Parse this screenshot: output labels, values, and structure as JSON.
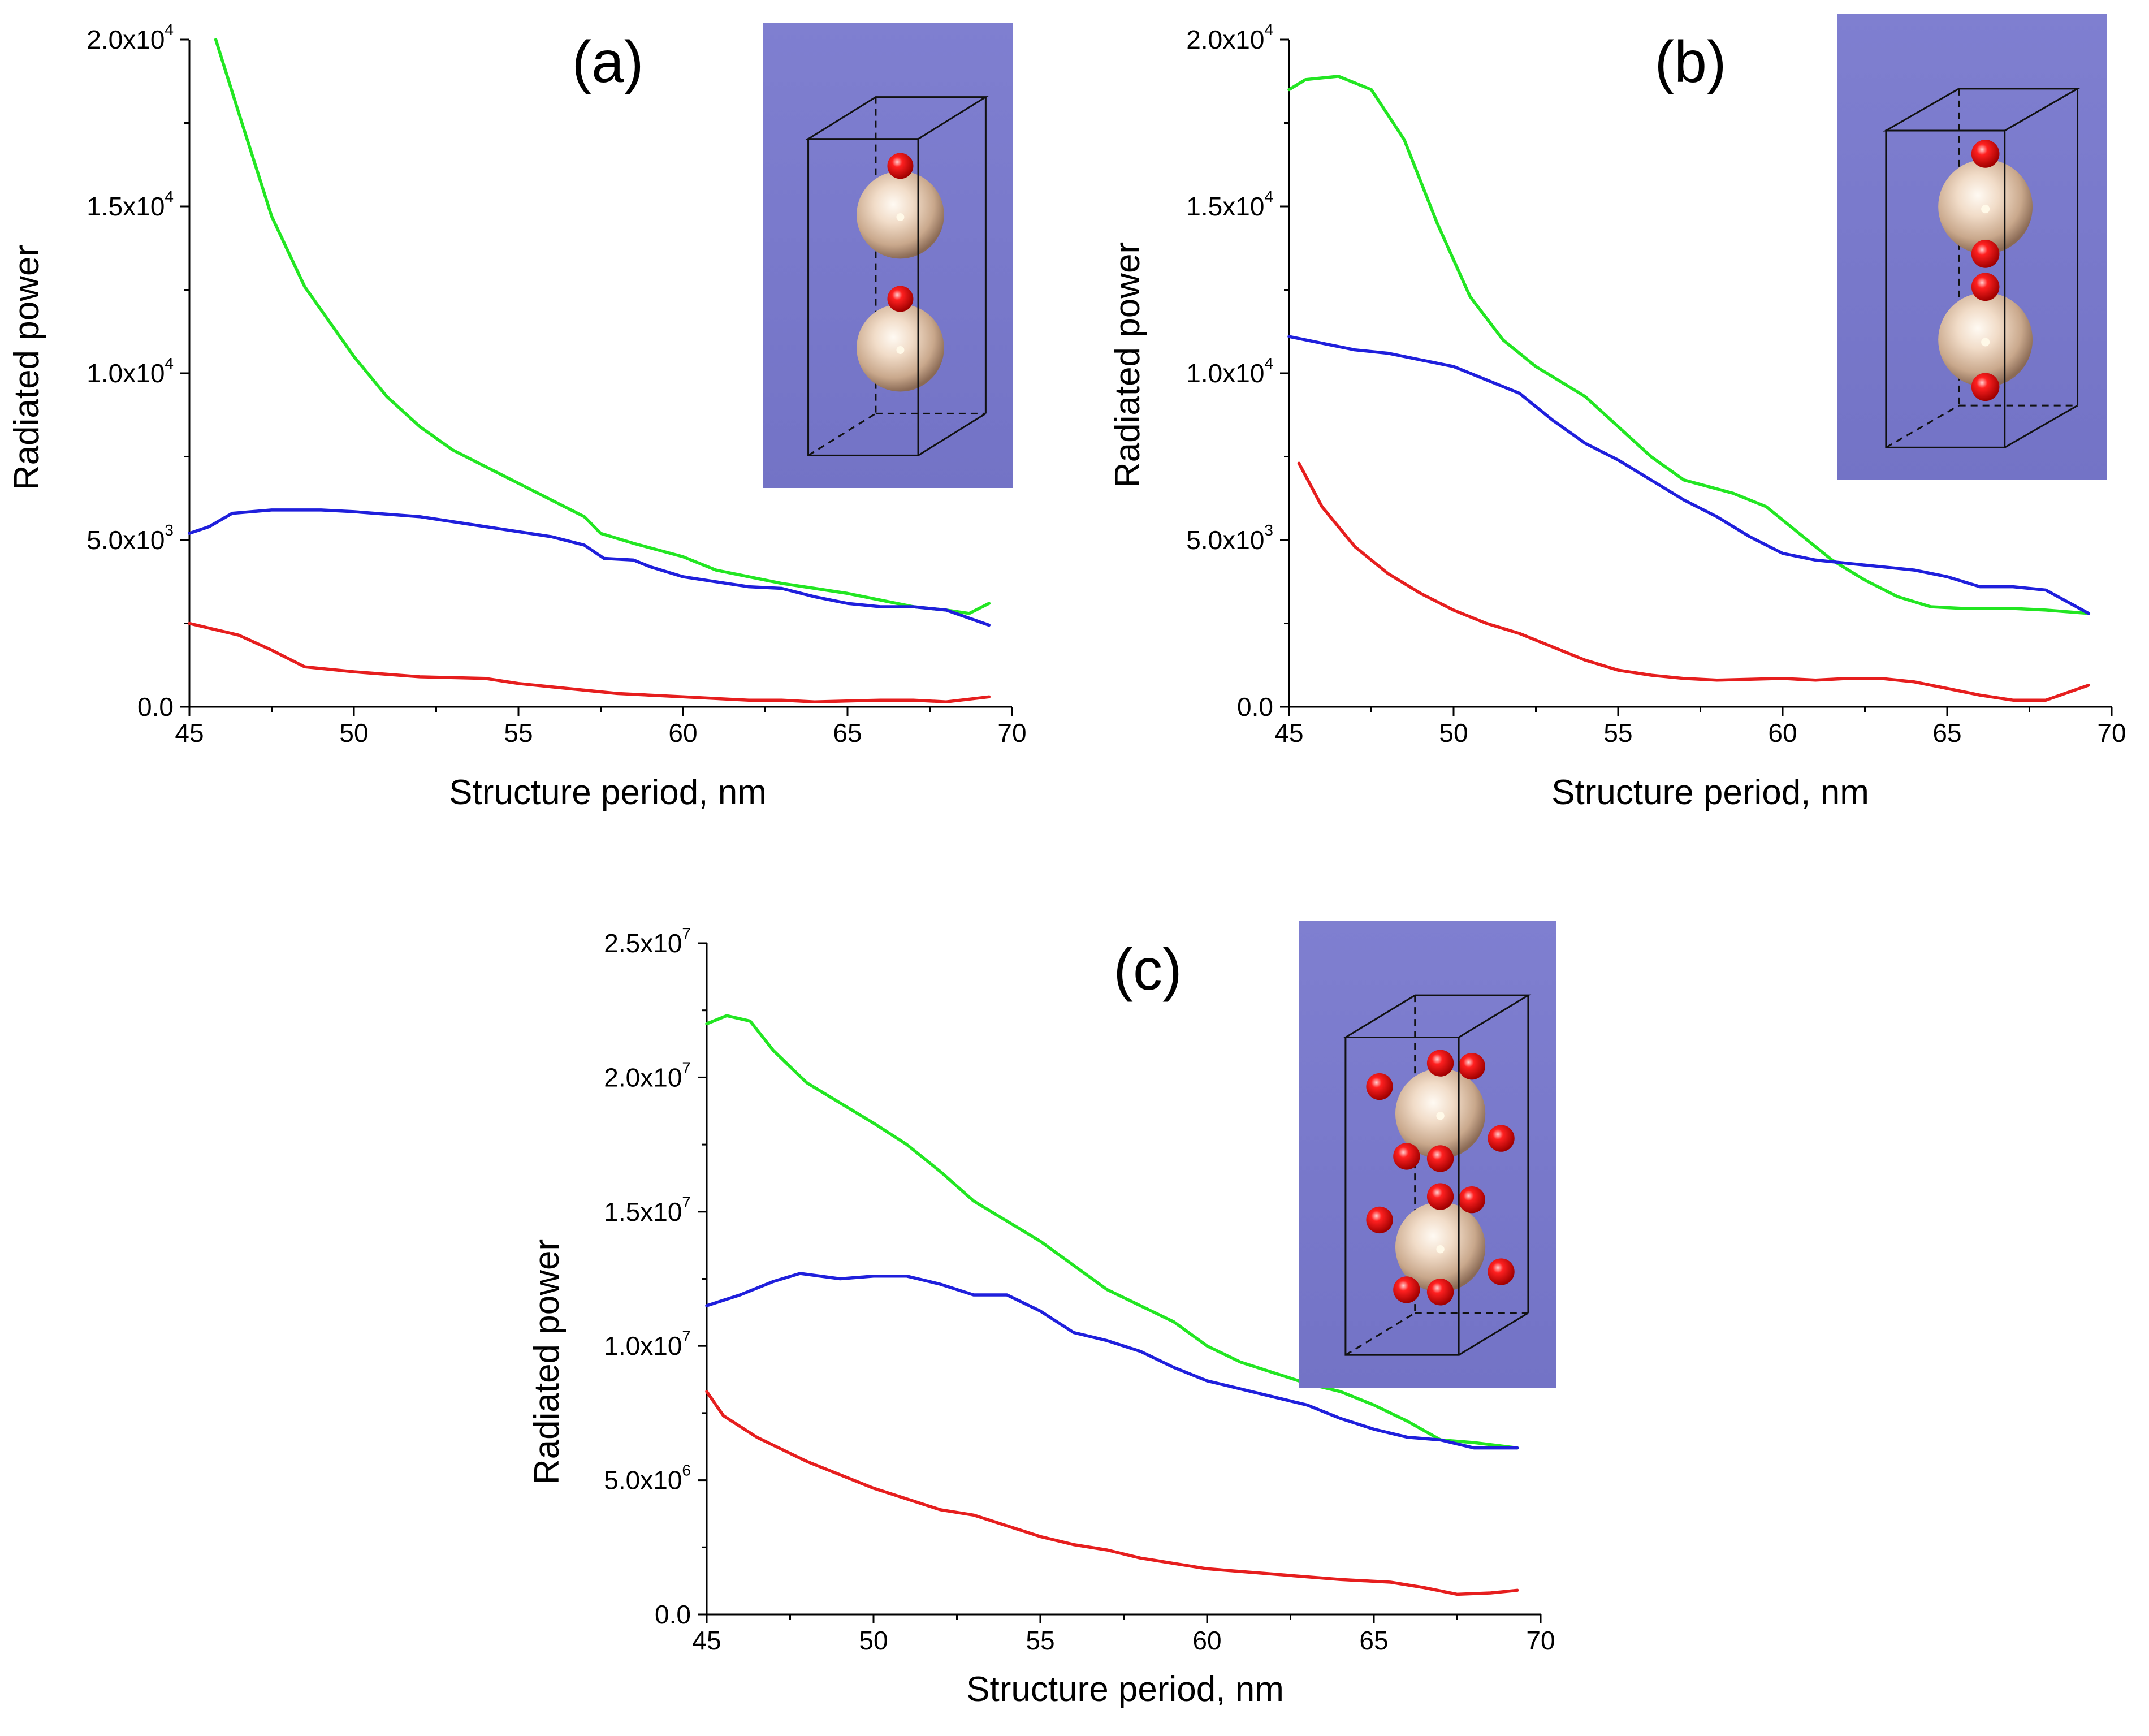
{
  "colors": {
    "green": "#22e622",
    "blue": "#1f1fdc",
    "red": "#e61e1e",
    "inset_background": "#7b7bcb",
    "sphere": "#e5cfba",
    "atom": "#ff1414"
  },
  "chart_data": [
    {
      "type": "line",
      "title": "(a)",
      "xlabel": "Structure period, nm",
      "ylabel": "Radiated power",
      "xlim": [
        45,
        70
      ],
      "ylim": [
        0,
        20000
      ],
      "x_ticks": [
        45,
        50,
        55,
        60,
        65,
        70
      ],
      "y_ticks": [
        {
          "value": 0,
          "mantissa": "0.0",
          "exponent": ""
        },
        {
          "value": 5000,
          "mantissa": "5.0x10",
          "exponent": "3"
        },
        {
          "value": 10000,
          "mantissa": "1.0x10",
          "exponent": "4"
        },
        {
          "value": 15000,
          "mantissa": "1.5x10",
          "exponent": "4"
        },
        {
          "value": 20000,
          "mantissa": "2.0x10",
          "exponent": "4"
        }
      ],
      "inset": {
        "description_icon": "unit-cell-two-spheres-two-atoms",
        "atoms_per_sphere": 1
      },
      "series": [
        {
          "name": "green",
          "color": "#22e622",
          "points": [
            [
              45.8,
              20000
            ],
            [
              46.5,
              17800
            ],
            [
              47.5,
              14700
            ],
            [
              48.5,
              12600
            ],
            [
              50,
              10500
            ],
            [
              51,
              9300
            ],
            [
              52,
              8400
            ],
            [
              53,
              7700
            ],
            [
              54,
              7200
            ],
            [
              55,
              6700
            ],
            [
              56,
              6200
            ],
            [
              57,
              5700
            ],
            [
              57.5,
              5200
            ],
            [
              58.5,
              4900
            ],
            [
              60,
              4500
            ],
            [
              61,
              4100
            ],
            [
              62,
              3900
            ],
            [
              63,
              3700
            ],
            [
              64,
              3550
            ],
            [
              65,
              3400
            ],
            [
              66,
              3200
            ],
            [
              67,
              3000
            ],
            [
              68,
              2900
            ],
            [
              68.7,
              2800
            ],
            [
              69.3,
              3100
            ]
          ]
        },
        {
          "name": "blue",
          "color": "#1f1fdc",
          "points": [
            [
              45,
              5200
            ],
            [
              45.6,
              5400
            ],
            [
              46.3,
              5800
            ],
            [
              47.5,
              5900
            ],
            [
              49,
              5900
            ],
            [
              50,
              5850
            ],
            [
              52,
              5700
            ],
            [
              54,
              5400
            ],
            [
              56,
              5100
            ],
            [
              57,
              4850
            ],
            [
              57.6,
              4450
            ],
            [
              58.5,
              4400
            ],
            [
              59,
              4200
            ],
            [
              60,
              3900
            ],
            [
              61,
              3750
            ],
            [
              62,
              3600
            ],
            [
              63,
              3550
            ],
            [
              64,
              3300
            ],
            [
              65,
              3100
            ],
            [
              66,
              3000
            ],
            [
              67,
              3000
            ],
            [
              68,
              2900
            ],
            [
              69.3,
              2450
            ]
          ]
        },
        {
          "name": "red",
          "color": "#e61e1e",
          "points": [
            [
              45,
              2500
            ],
            [
              46.5,
              2150
            ],
            [
              47.5,
              1700
            ],
            [
              48.5,
              1200
            ],
            [
              50,
              1050
            ],
            [
              52,
              900
            ],
            [
              54,
              850
            ],
            [
              55,
              700
            ],
            [
              56,
              600
            ],
            [
              57,
              500
            ],
            [
              58,
              400
            ],
            [
              60,
              300
            ],
            [
              61,
              250
            ],
            [
              62,
              200
            ],
            [
              63,
              200
            ],
            [
              64,
              150
            ],
            [
              66,
              200
            ],
            [
              67,
              200
            ],
            [
              68,
              150
            ],
            [
              69.3,
              300
            ]
          ]
        }
      ]
    },
    {
      "type": "line",
      "title": "(b)",
      "xlabel": "Structure period, nm",
      "ylabel": "Radiated power",
      "xlim": [
        45,
        70
      ],
      "ylim": [
        0,
        20000
      ],
      "x_ticks": [
        45,
        50,
        55,
        60,
        65,
        70
      ],
      "y_ticks": [
        {
          "value": 0,
          "mantissa": "0.0",
          "exponent": ""
        },
        {
          "value": 5000,
          "mantissa": "5.0x10",
          "exponent": "3"
        },
        {
          "value": 10000,
          "mantissa": "1.0x10",
          "exponent": "4"
        },
        {
          "value": 15000,
          "mantissa": "1.5x10",
          "exponent": "4"
        },
        {
          "value": 20000,
          "mantissa": "2.0x10",
          "exponent": "4"
        }
      ],
      "inset": {
        "description_icon": "unit-cell-two-spheres-four-atoms",
        "atoms_per_sphere": 2
      },
      "series": [
        {
          "name": "green",
          "color": "#22e622",
          "points": [
            [
              45,
              18500
            ],
            [
              45.5,
              18800
            ],
            [
              46.5,
              18900
            ],
            [
              47.5,
              18500
            ],
            [
              48.5,
              17000
            ],
            [
              49.5,
              14500
            ],
            [
              50.5,
              12300
            ],
            [
              51.5,
              11000
            ],
            [
              52.5,
              10200
            ],
            [
              54,
              9300
            ],
            [
              55,
              8400
            ],
            [
              56,
              7500
            ],
            [
              57,
              6800
            ],
            [
              58.5,
              6400
            ],
            [
              59.5,
              6000
            ],
            [
              60.5,
              5200
            ],
            [
              61.5,
              4400
            ],
            [
              62.5,
              3800
            ],
            [
              63.5,
              3300
            ],
            [
              64.5,
              3000
            ],
            [
              65.5,
              2950
            ],
            [
              67,
              2950
            ],
            [
              68,
              2900
            ],
            [
              69.3,
              2800
            ]
          ]
        },
        {
          "name": "blue",
          "color": "#1f1fdc",
          "points": [
            [
              45,
              11100
            ],
            [
              46,
              10900
            ],
            [
              47,
              10700
            ],
            [
              48,
              10600
            ],
            [
              49,
              10400
            ],
            [
              50,
              10200
            ],
            [
              51,
              9800
            ],
            [
              52,
              9400
            ],
            [
              53,
              8600
            ],
            [
              54,
              7900
            ],
            [
              55,
              7400
            ],
            [
              56,
              6800
            ],
            [
              57,
              6200
            ],
            [
              58,
              5700
            ],
            [
              59,
              5100
            ],
            [
              60,
              4600
            ],
            [
              61,
              4400
            ],
            [
              62,
              4300
            ],
            [
              63,
              4200
            ],
            [
              64,
              4100
            ],
            [
              65,
              3900
            ],
            [
              66,
              3600
            ],
            [
              67,
              3600
            ],
            [
              68,
              3500
            ],
            [
              69.3,
              2800
            ]
          ]
        },
        {
          "name": "red",
          "color": "#e61e1e",
          "points": [
            [
              45.3,
              7300
            ],
            [
              46,
              6000
            ],
            [
              47,
              4800
            ],
            [
              48,
              4000
            ],
            [
              49,
              3400
            ],
            [
              50,
              2900
            ],
            [
              51,
              2500
            ],
            [
              52,
              2200
            ],
            [
              53,
              1800
            ],
            [
              54,
              1400
            ],
            [
              55,
              1100
            ],
            [
              56,
              950
            ],
            [
              57,
              850
            ],
            [
              58,
              800
            ],
            [
              60,
              850
            ],
            [
              61,
              800
            ],
            [
              62,
              850
            ],
            [
              63,
              850
            ],
            [
              64,
              750
            ],
            [
              65,
              550
            ],
            [
              66,
              350
            ],
            [
              67,
              200
            ],
            [
              68,
              200
            ],
            [
              69.3,
              650
            ]
          ]
        }
      ]
    },
    {
      "type": "line",
      "title": "(c)",
      "xlabel": "Structure period, nm",
      "ylabel": "Radiated power",
      "xlim": [
        45,
        70
      ],
      "ylim": [
        0,
        25000000
      ],
      "x_ticks": [
        45,
        50,
        55,
        60,
        65,
        70
      ],
      "y_ticks": [
        {
          "value": 0,
          "mantissa": "0.0",
          "exponent": ""
        },
        {
          "value": 5000000,
          "mantissa": "5.0x10",
          "exponent": "6"
        },
        {
          "value": 10000000,
          "mantissa": "1.0x10",
          "exponent": "7"
        },
        {
          "value": 15000000,
          "mantissa": "1.5x10",
          "exponent": "7"
        },
        {
          "value": 20000000,
          "mantissa": "2.0x10",
          "exponent": "7"
        },
        {
          "value": 25000000,
          "mantissa": "2.5x10",
          "exponent": "7"
        }
      ],
      "inset": {
        "description_icon": "unit-cell-two-spheres-many-atoms",
        "atoms_per_sphere": 6
      },
      "series": [
        {
          "name": "green",
          "color": "#22e622",
          "points": [
            [
              45,
              22000000
            ],
            [
              45.6,
              22300000
            ],
            [
              46.3,
              22100000
            ],
            [
              47,
              21000000
            ],
            [
              48,
              19800000
            ],
            [
              50,
              18300000
            ],
            [
              51,
              17500000
            ],
            [
              52,
              16500000
            ],
            [
              53,
              15400000
            ],
            [
              55,
              13900000
            ],
            [
              56,
              13000000
            ],
            [
              57,
              12100000
            ],
            [
              58,
              11500000
            ],
            [
              59,
              10900000
            ],
            [
              60,
              10000000
            ],
            [
              61,
              9400000
            ],
            [
              62,
              9000000
            ],
            [
              63,
              8600000
            ],
            [
              64,
              8300000
            ],
            [
              65,
              7800000
            ],
            [
              66,
              7200000
            ],
            [
              67,
              6500000
            ],
            [
              68,
              6400000
            ],
            [
              69.3,
              6200000
            ]
          ]
        },
        {
          "name": "blue",
          "color": "#1f1fdc",
          "points": [
            [
              45,
              11500000
            ],
            [
              46,
              11900000
            ],
            [
              47,
              12400000
            ],
            [
              47.8,
              12700000
            ],
            [
              49,
              12500000
            ],
            [
              50,
              12600000
            ],
            [
              51,
              12600000
            ],
            [
              52,
              12300000
            ],
            [
              53,
              11900000
            ],
            [
              54,
              11900000
            ],
            [
              55,
              11300000
            ],
            [
              56,
              10500000
            ],
            [
              57,
              10200000
            ],
            [
              58,
              9800000
            ],
            [
              59,
              9200000
            ],
            [
              60,
              8700000
            ],
            [
              61,
              8400000
            ],
            [
              62,
              8100000
            ],
            [
              63,
              7800000
            ],
            [
              64,
              7300000
            ],
            [
              65,
              6900000
            ],
            [
              66,
              6600000
            ],
            [
              67,
              6500000
            ],
            [
              68,
              6200000
            ],
            [
              69.3,
              6200000
            ]
          ]
        },
        {
          "name": "red",
          "color": "#e61e1e",
          "points": [
            [
              45,
              8300000
            ],
            [
              45.5,
              7400000
            ],
            [
              46.5,
              6600000
            ],
            [
              48,
              5700000
            ],
            [
              49,
              5200000
            ],
            [
              50,
              4700000
            ],
            [
              51,
              4300000
            ],
            [
              52,
              3900000
            ],
            [
              53,
              3700000
            ],
            [
              54,
              3300000
            ],
            [
              55,
              2900000
            ],
            [
              56,
              2600000
            ],
            [
              57,
              2400000
            ],
            [
              58,
              2100000
            ],
            [
              59,
              1900000
            ],
            [
              60,
              1700000
            ],
            [
              62,
              1500000
            ],
            [
              64,
              1300000
            ],
            [
              65.5,
              1200000
            ],
            [
              66.5,
              1000000
            ],
            [
              67.5,
              750000
            ],
            [
              68.5,
              800000
            ],
            [
              69.3,
              900000
            ]
          ]
        }
      ]
    }
  ]
}
